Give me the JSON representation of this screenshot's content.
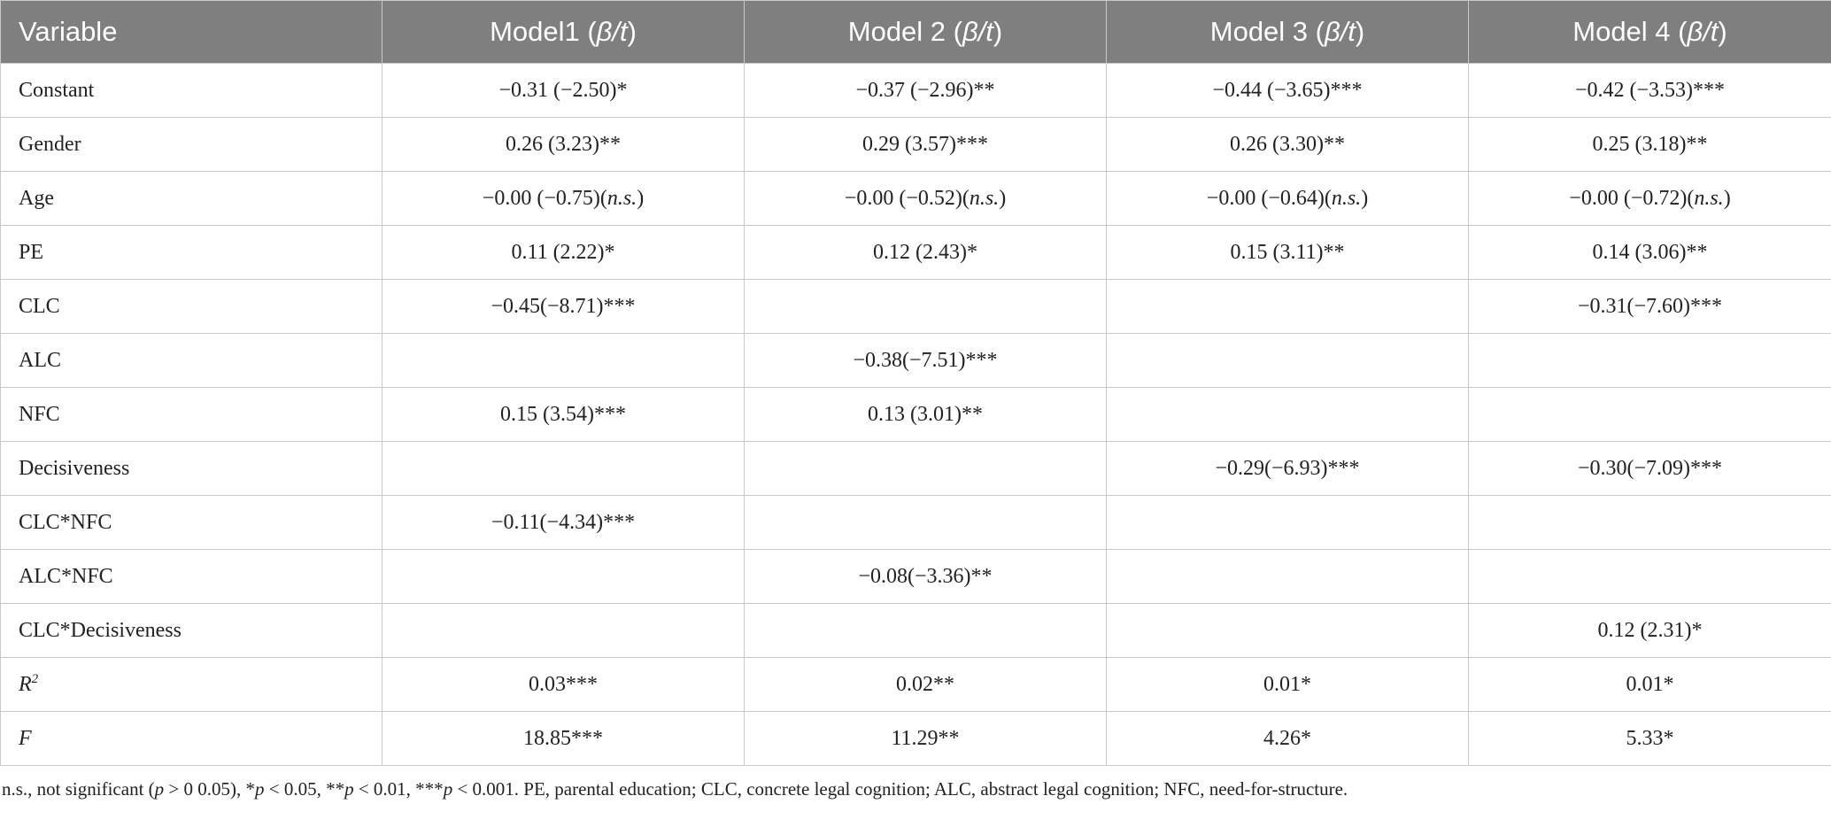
{
  "table": {
    "header": [
      "Variable",
      [
        {
          "t": "Model1 ("
        },
        {
          "t": "β/t",
          "i": true
        },
        {
          "t": ")"
        }
      ],
      [
        {
          "t": "Model 2 ("
        },
        {
          "t": "β/t",
          "i": true
        },
        {
          "t": ")"
        }
      ],
      [
        {
          "t": "Model 3 ("
        },
        {
          "t": "β/t",
          "i": true
        },
        {
          "t": ")"
        }
      ],
      [
        {
          "t": "Model 4 ("
        },
        {
          "t": "β/t",
          "i": true
        },
        {
          "t": ")"
        }
      ]
    ],
    "rows": [
      [
        "Constant",
        "−0.31 (−2.50)*",
        "−0.37 (−2.96)**",
        "−0.44 (−3.65)***",
        "−0.42 (−3.53)***"
      ],
      [
        "Gender",
        "0.26 (3.23)**",
        "0.29 (3.57)***",
        "0.26 (3.30)**",
        "0.25 (3.18)**"
      ],
      [
        "Age",
        [
          {
            "t": "−0.00 (−0.75)("
          },
          {
            "t": "n.s.",
            "i": true
          },
          {
            "t": ")"
          }
        ],
        [
          {
            "t": "−0.00 (−0.52)("
          },
          {
            "t": "n.s.",
            "i": true
          },
          {
            "t": ")"
          }
        ],
        [
          {
            "t": "−0.00 (−0.64)("
          },
          {
            "t": "n.s.",
            "i": true
          },
          {
            "t": ")"
          }
        ],
        [
          {
            "t": "−0.00 (−0.72)("
          },
          {
            "t": "n.s.",
            "i": true
          },
          {
            "t": ")"
          }
        ]
      ],
      [
        "PE",
        "0.11 (2.22)*",
        "0.12 (2.43)*",
        "0.15 (3.11)**",
        "0.14 (3.06)**"
      ],
      [
        "CLC",
        "−0.45(−8.71)***",
        null,
        null,
        "−0.31(−7.60)***"
      ],
      [
        "ALC",
        null,
        "−0.38(−7.51)***",
        null,
        null
      ],
      [
        "NFC",
        "0.15 (3.54)***",
        "0.13 (3.01)**",
        null,
        null
      ],
      [
        "Decisiveness",
        null,
        null,
        "−0.29(−6.93)***",
        "−0.30(−7.09)***"
      ],
      [
        "CLC*NFC",
        "−0.11(−4.34)***",
        null,
        null,
        null
      ],
      [
        "ALC*NFC",
        null,
        "−0.08(−3.36)**",
        null,
        null
      ],
      [
        "CLC*Decisiveness",
        null,
        null,
        null,
        "0.12 (2.31)*"
      ],
      [
        [
          {
            "t": "R",
            "i": true
          },
          {
            "t": "2",
            "i": true,
            "sup": true
          }
        ],
        "0.03***",
        "0.02**",
        "0.01*",
        "0.01*"
      ],
      [
        [
          {
            "t": "F",
            "i": true
          }
        ],
        "18.85***",
        "11.29**",
        "4.26*",
        "5.33*"
      ]
    ]
  },
  "footnote": [
    {
      "t": "n.s., not significant ("
    },
    {
      "t": "p",
      "i": true
    },
    {
      "t": " > 0 0.05), *"
    },
    {
      "t": "p",
      "i": true
    },
    {
      "t": " < 0.05, **"
    },
    {
      "t": "p",
      "i": true
    },
    {
      "t": " < 0.01, ***"
    },
    {
      "t": "p",
      "i": true
    },
    {
      "t": " < 0.001. PE, parental education; CLC, concrete legal cognition; ALC, abstract legal cognition; NFC, need-for-structure."
    }
  ]
}
